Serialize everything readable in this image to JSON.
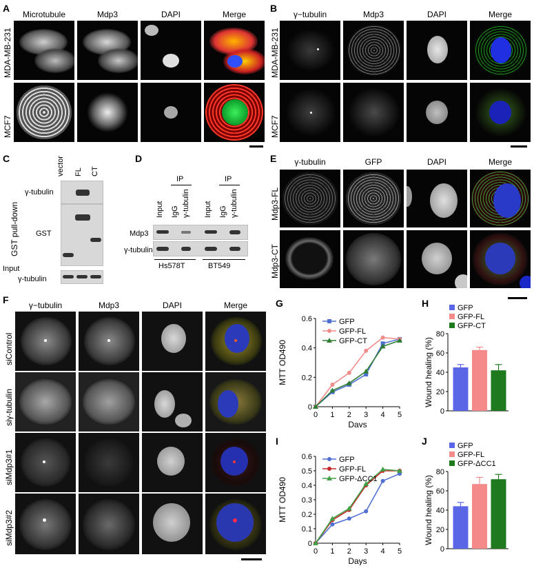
{
  "panels": {
    "A": {
      "label": "A",
      "columns": [
        "Microtubule",
        "Mdp3",
        "DAPI",
        "Merge"
      ],
      "rows": [
        "MDA-MB-231",
        "MCF7"
      ]
    },
    "B": {
      "label": "B",
      "columns": [
        "γ−tubulin",
        "Mdp3",
        "DAPI",
        "Merge"
      ],
      "rows": [
        "MDA-MB-231",
        "MCF7"
      ]
    },
    "C": {
      "label": "C",
      "lanes": [
        "vector",
        "FL",
        "CT"
      ],
      "side_label": "GST pull-down",
      "blots": [
        "γ-tubulin",
        "GST"
      ],
      "input_label": "Input",
      "input_blot": "γ-tubulin"
    },
    "D": {
      "label": "D",
      "ip_label": "IP",
      "lanes": [
        "Input",
        "IgG",
        "γ-tubulin",
        "Input",
        "IgG",
        "γ-tubulin"
      ],
      "blots": [
        "Mdp3",
        "γ-tubulin"
      ],
      "cell_lines": [
        "Hs578T",
        "BT549"
      ]
    },
    "E": {
      "label": "E",
      "columns": [
        "γ-tubulin",
        "GFP",
        "DAPI",
        "Merge"
      ],
      "rows": [
        "Mdp3-FL",
        "Mdp3-CT"
      ]
    },
    "F": {
      "label": "F",
      "columns": [
        "γ−tubulin",
        "Mdp3",
        "DAPI",
        "Merge"
      ],
      "rows": [
        "siControl",
        "siγ-tubulin",
        "siMdp3#1",
        "siMdp3#2"
      ]
    },
    "G": {
      "label": "G"
    },
    "H": {
      "label": "H"
    },
    "I": {
      "label": "I"
    },
    "J": {
      "label": "J"
    }
  },
  "chart_data": [
    {
      "id": "G",
      "type": "line",
      "xlabel": "Days",
      "ylabel": "MTT OD490",
      "x": [
        0,
        1,
        2,
        3,
        4,
        5
      ],
      "xlim": [
        0,
        5
      ],
      "ylim": [
        0,
        0.6
      ],
      "yticks": [
        "0",
        "0.2",
        "0.4",
        "0.6"
      ],
      "series": [
        {
          "name": "GFP",
          "color": "#4f6fd1",
          "marker": "square",
          "values": [
            0,
            0.1,
            0.15,
            0.22,
            0.43,
            0.46
          ]
        },
        {
          "name": "GFP-FL",
          "color": "#f08c8c",
          "marker": "circle",
          "values": [
            0,
            0.15,
            0.23,
            0.38,
            0.47,
            0.46
          ]
        },
        {
          "name": "GFP-CT",
          "color": "#2e7d32",
          "marker": "triangle",
          "values": [
            0,
            0.11,
            0.16,
            0.24,
            0.41,
            0.45
          ]
        }
      ],
      "legend": "top-left"
    },
    {
      "id": "H",
      "type": "bar",
      "ylabel": "Wound healing (%)",
      "ylim": [
        0,
        80
      ],
      "yticks": [
        "0",
        "20",
        "40",
        "60",
        "80"
      ],
      "categories": [
        "GFP",
        "GFP-FL",
        "GFP-CT"
      ],
      "values": [
        45,
        63,
        42
      ],
      "errors": [
        3,
        3,
        6
      ],
      "colors": [
        "#5b66e6",
        "#f48a8a",
        "#1f7a1f"
      ],
      "legend": "top-left"
    },
    {
      "id": "I",
      "type": "line",
      "xlabel": "Days",
      "ylabel": "MTT OD490",
      "x": [
        0,
        1,
        2,
        3,
        4,
        5
      ],
      "xlim": [
        0,
        5
      ],
      "ylim": [
        0,
        0.6
      ],
      "yticks": [
        "0",
        "0.1",
        "0.2",
        "0.3",
        "0.4",
        "0.5",
        "0.6"
      ],
      "series": [
        {
          "name": "GFP",
          "color": "#4f6fd1",
          "marker": "circle",
          "values": [
            0,
            0.13,
            0.17,
            0.22,
            0.43,
            0.48
          ]
        },
        {
          "name": "GFP-FL",
          "color": "#c62828",
          "marker": "circle",
          "values": [
            0,
            0.16,
            0.23,
            0.4,
            0.5,
            0.5
          ]
        },
        {
          "name": "GFP-ΔCC1",
          "color": "#43a047",
          "marker": "triangle",
          "values": [
            0,
            0.17,
            0.24,
            0.41,
            0.51,
            0.5
          ]
        }
      ],
      "legend": "top-left"
    },
    {
      "id": "J",
      "type": "bar",
      "ylabel": "Wound healing (%)",
      "ylim": [
        0,
        80
      ],
      "yticks": [
        "0",
        "20",
        "40",
        "60",
        "80"
      ],
      "categories": [
        "GFP",
        "GFP-FL",
        "GFP-ΔCC1"
      ],
      "values": [
        44,
        67,
        72
      ],
      "errors": [
        4,
        7,
        5
      ],
      "colors": [
        "#5b66e6",
        "#f48a8a",
        "#1f7a1f"
      ],
      "legend": "top-left"
    }
  ]
}
